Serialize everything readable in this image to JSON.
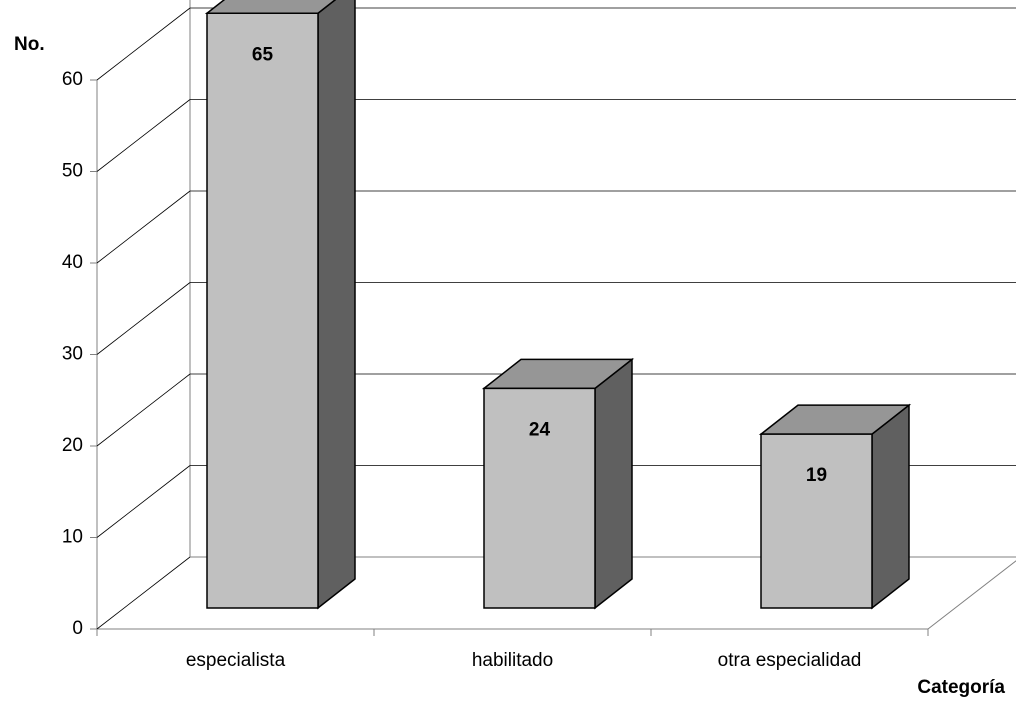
{
  "chart_data": {
    "type": "bar3d",
    "y_label": "No.",
    "x_label": "Categoría",
    "categories": [
      "especialista",
      "habilitado",
      "otra especialidad"
    ],
    "values": [
      65,
      24,
      19
    ],
    "colors": {
      "front": "#c0c0c0",
      "top": "#969696",
      "side": "#606060"
    },
    "ylim": [
      0,
      60
    ],
    "yticks": [
      0,
      10,
      20,
      30,
      40,
      50,
      60
    ],
    "grid": true
  }
}
